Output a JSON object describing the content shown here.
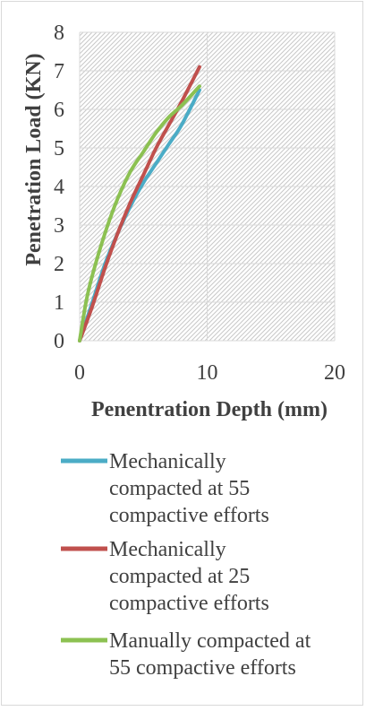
{
  "chart_data": {
    "type": "line",
    "xlabel": "Penentration Depth (mm)",
    "ylabel": "Penetration Load (KN)",
    "xlim": [
      0,
      20
    ],
    "ylim": [
      0,
      8
    ],
    "xticks": [
      "0",
      "10",
      "20"
    ],
    "yticks": [
      "0",
      "1",
      "2",
      "3",
      "4",
      "5",
      "6",
      "7",
      "8"
    ],
    "grid": true,
    "plot_background": "diagonal-hatch",
    "legend_position": "bottom",
    "series": [
      {
        "name": "Mechanically compacted at 55 compactive efforts",
        "color": "#4bacc6",
        "x": [
          0,
          1,
          2,
          3,
          4,
          5,
          6,
          7,
          8,
          9.4
        ],
        "y": [
          0,
          1.0,
          2.0,
          2.8,
          3.5,
          4.1,
          4.6,
          5.1,
          5.6,
          6.5
        ]
      },
      {
        "name": "Mechanically compacted at 25 compactive efforts",
        "color": "#c0504d",
        "x": [
          0,
          1,
          2,
          3,
          4,
          5,
          6,
          7,
          8,
          9.4
        ],
        "y": [
          0,
          0.9,
          1.9,
          2.8,
          3.6,
          4.3,
          5.0,
          5.6,
          6.2,
          7.1
        ]
      },
      {
        "name": "Manually compacted at 55 compactive efforts",
        "color": "#8cc152",
        "x": [
          0,
          0.5,
          1,
          2,
          3,
          4,
          5,
          6,
          7,
          8,
          9.4
        ],
        "y": [
          0,
          1.0,
          1.7,
          2.8,
          3.7,
          4.4,
          4.9,
          5.4,
          5.8,
          6.1,
          6.6
        ]
      }
    ]
  }
}
